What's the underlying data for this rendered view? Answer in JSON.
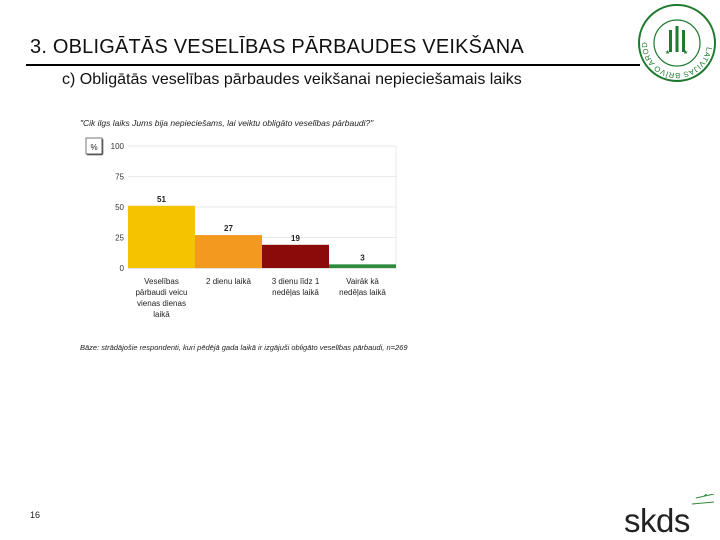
{
  "slide": {
    "title": "3. OBLIGĀTĀS VESELĪBAS PĀRBAUDES VEIKŠANA",
    "subtitle": "c) Obligātās veselības pārbaudes veikšanai nepieciešamais laiks",
    "question": "\"Cik ilgs laiks Jums bija nepieciešams, lai veiktu obligāto veselības pārbaudi?\"",
    "base_note": "Bāze: strādājošie respondenti, kuri pēdējā gada laikā ir izgājuši obligāto veselības pārbaudi, n=269",
    "page_number": "16"
  },
  "logo": {
    "ring_text": "LATVIJAS BRĪVO ARODBIEDRĪBU SAVIENĪBA",
    "color": "#1e7a2e"
  },
  "brand": {
    "text": "skds",
    "accent": "#2e8b3d"
  },
  "chart_data": {
    "type": "bar",
    "ylabel": "%",
    "ylim": [
      0,
      100
    ],
    "yticks": [
      0,
      25,
      50,
      75,
      100
    ],
    "grid": true,
    "categories": [
      [
        "Veselības",
        "pārbaudi veicu",
        "vienas dienas",
        "laikā"
      ],
      [
        "2 dienu laikā"
      ],
      [
        "3 dienu līdz 1",
        "nedēļas laikā"
      ],
      [
        "Vairāk kā",
        "nedēļas laikā"
      ]
    ],
    "values": [
      51,
      27,
      19,
      3
    ],
    "colors": [
      "#f5c400",
      "#f39a1e",
      "#8b0a0a",
      "#2e8b3d"
    ]
  }
}
